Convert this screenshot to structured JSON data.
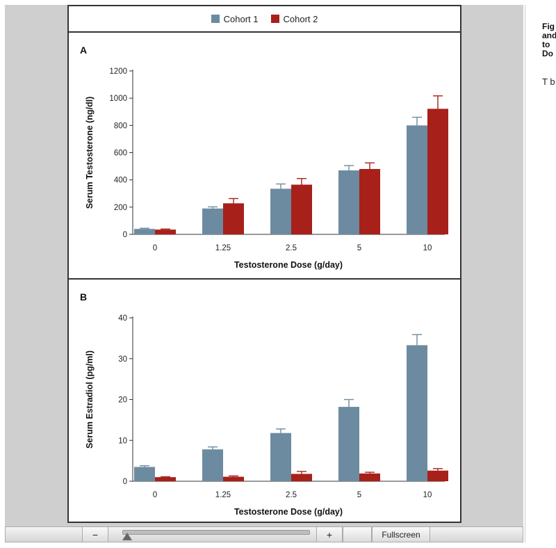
{
  "legend": [
    {
      "name": "Cohort 1",
      "color": "#6c8ba0"
    },
    {
      "name": "Cohort 2",
      "color": "#a8201a"
    }
  ],
  "toolbar": {
    "zoom_out_label": "−",
    "zoom_in_label": "+",
    "fullscreen_label": "Fullscreen",
    "zoom_level": 0.0
  },
  "side_panel": {
    "title_lines": [
      "Fig",
      "and",
      "to",
      "Do"
    ],
    "text": "T b"
  },
  "chart_data": [
    {
      "type": "bar",
      "panel": "A",
      "categories": [
        "0",
        "1.25",
        "2.5",
        "5",
        "10"
      ],
      "xlabel": "Testosterone Dose (g/day)",
      "ylabel": "Serum Testosterone (ng/dl)",
      "ylim": [
        0,
        1200
      ],
      "yticks": [
        0,
        200,
        400,
        600,
        800,
        1000,
        1200
      ],
      "series": [
        {
          "name": "Cohort 1",
          "values": [
            40,
            190,
            335,
            470,
            800
          ],
          "errors": [
            5,
            12,
            35,
            35,
            60
          ]
        },
        {
          "name": "Cohort 2",
          "values": [
            35,
            228,
            365,
            480,
            922
          ],
          "errors": [
            4,
            35,
            45,
            45,
            95
          ]
        }
      ]
    },
    {
      "type": "bar",
      "panel": "B",
      "categories": [
        "0",
        "1.25",
        "2.5",
        "5",
        "10"
      ],
      "xlabel": "Testosterone Dose (g/day)",
      "ylabel": "Serum Estradiol (pg/ml)",
      "ylim": [
        0,
        40
      ],
      "yticks": [
        0,
        10,
        20,
        30,
        40
      ],
      "series": [
        {
          "name": "Cohort 1",
          "values": [
            3.5,
            7.8,
            11.8,
            18.2,
            33.3
          ],
          "errors": [
            0.3,
            0.6,
            1.0,
            1.8,
            2.6
          ]
        },
        {
          "name": "Cohort 2",
          "values": [
            1.0,
            1.1,
            1.8,
            1.9,
            2.6
          ],
          "errors": [
            0.1,
            0.2,
            0.6,
            0.3,
            0.5
          ]
        }
      ]
    }
  ]
}
